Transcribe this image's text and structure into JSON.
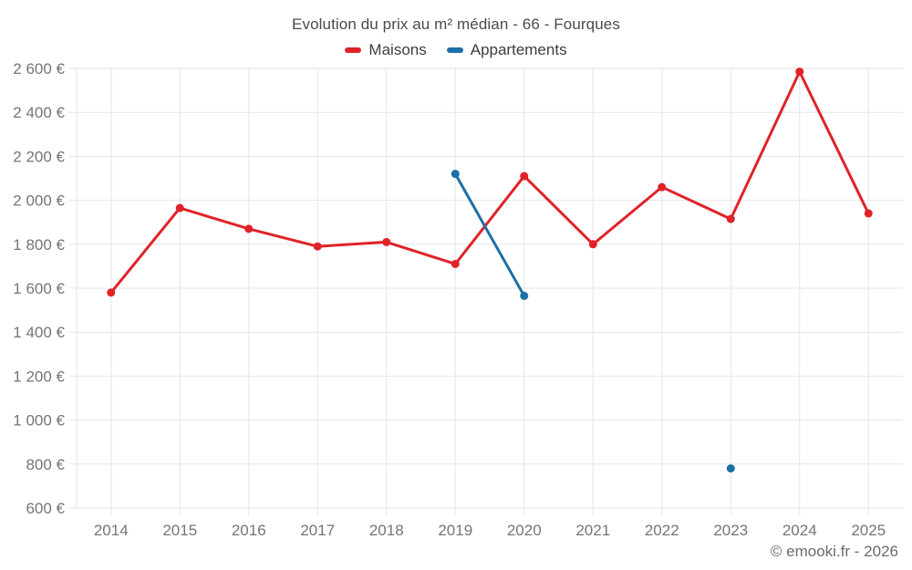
{
  "title": "Evolution du prix au m² médian - 66 - Fourques",
  "legend": [
    {
      "label": "Maisons",
      "color": "#e02328"
    },
    {
      "label": "Appartements",
      "color": "#1d6fa8"
    }
  ],
  "footer": "© emooki.fr - 2026",
  "colors": {
    "maisons": "#e02328",
    "appartements": "#1d6fa8",
    "grid": "#e6e6e6",
    "axis_text": "#757575"
  },
  "chart_data": {
    "type": "line",
    "title": "Evolution du prix au m² médian - 66 - Fourques",
    "x": [
      2014,
      2015,
      2016,
      2017,
      2018,
      2019,
      2020,
      2021,
      2022,
      2023,
      2024,
      2025
    ],
    "series": [
      {
        "name": "Maisons",
        "color": "#e02328",
        "values": [
          1580,
          1965,
          1870,
          1790,
          1810,
          1710,
          2110,
          1800,
          2060,
          1915,
          2585,
          1940
        ]
      },
      {
        "name": "Appartements",
        "color": "#1d6fa8",
        "values": [
          null,
          null,
          null,
          null,
          null,
          2120,
          1565,
          null,
          null,
          780,
          null,
          null
        ]
      }
    ],
    "ylim": [
      600,
      2600
    ],
    "ytick_step": 200,
    "ylabel_suffix": " €",
    "xlabel": "",
    "ylabel": "",
    "grid": true,
    "legend_position": "top"
  }
}
